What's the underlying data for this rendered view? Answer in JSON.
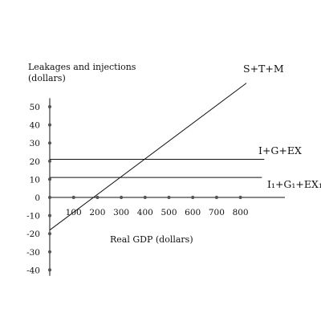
{
  "chart_data": {
    "type": "line",
    "title": "",
    "ylabel_lines": [
      "Leakages and injections",
      "(dollars)"
    ],
    "xlabel": "Real GDP (dollars)",
    "x_ticks": [
      100,
      200,
      300,
      400,
      500,
      600,
      700,
      800
    ],
    "y_ticks": [
      50,
      40,
      30,
      20,
      10,
      0,
      -10,
      -20,
      -30,
      -40
    ],
    "xlim": [
      0,
      980
    ],
    "ylim": [
      -45,
      60
    ],
    "grid": false,
    "series": [
      {
        "name": "S+T+M",
        "x": [
          0,
          825
        ],
        "y": [
          -18,
          63
        ]
      },
      {
        "name": "I+G+EX",
        "x": [
          0,
          900
        ],
        "y": [
          21,
          21
        ]
      },
      {
        "name": "I₁+G₁+EX₁",
        "x": [
          0,
          890
        ],
        "y": [
          11,
          11
        ]
      }
    ],
    "colors": {
      "line": "#111111",
      "dot": "#555555"
    }
  }
}
